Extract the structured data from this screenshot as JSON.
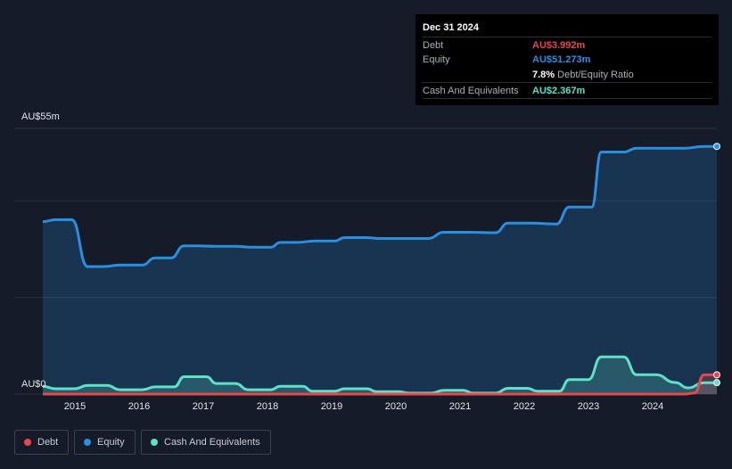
{
  "tooltip": {
    "date": "Dec 31 2024",
    "debt_label": "Debt",
    "debt_value": "AU$3.992m",
    "equity_label": "Equity",
    "equity_value": "AU$51.273m",
    "ratio_value": "7.8%",
    "ratio_label": "Debt/Equity Ratio",
    "cash_label": "Cash And Equivalents",
    "cash_value": "AU$2.367m"
  },
  "legend": {
    "debt": "Debt",
    "equity": "Equity",
    "cash": "Cash And Equivalents"
  },
  "colors": {
    "debt": "#e5484d",
    "equity": "#2b8fe0",
    "cash": "#5fe0c8",
    "background": "#151b28"
  },
  "chart_data": {
    "type": "area",
    "ylabel_top": "AU$55m",
    "ylabel_bottom": "AU$0",
    "ylim": [
      0,
      55
    ],
    "xlim": [
      2014.5,
      2025.0
    ],
    "x_ticks": [
      "2015",
      "2016",
      "2017",
      "2018",
      "2019",
      "2020",
      "2021",
      "2022",
      "2023",
      "2024"
    ],
    "series": [
      {
        "name": "Equity",
        "x": [
          2014.5,
          2014.7,
          2014.95,
          2015.2,
          2015.45,
          2015.7,
          2016.05,
          2016.25,
          2016.5,
          2016.7,
          2016.9,
          2017.2,
          2017.5,
          2017.75,
          2018.05,
          2018.2,
          2018.45,
          2018.75,
          2019.05,
          2019.2,
          2019.55,
          2019.75,
          2020.1,
          2020.5,
          2020.75,
          2021.15,
          2021.55,
          2021.75,
          2022.1,
          2022.5,
          2022.7,
          2023.05,
          2023.2,
          2023.55,
          2023.75,
          2024.1,
          2024.5,
          2024.8,
          2025.0
        ],
        "values": [
          35.7,
          36.1,
          36.1,
          26.4,
          26.4,
          26.7,
          26.7,
          28.2,
          28.2,
          30.7,
          30.7,
          30.6,
          30.6,
          30.4,
          30.4,
          31.4,
          31.4,
          31.7,
          31.7,
          32.4,
          32.4,
          32.2,
          32.2,
          32.2,
          33.5,
          33.5,
          33.4,
          35.4,
          35.4,
          35.2,
          38.7,
          38.7,
          50.1,
          50.1,
          50.9,
          50.9,
          50.9,
          51.273,
          51.273
        ]
      },
      {
        "name": "Cash And Equivalents",
        "x": [
          2014.5,
          2014.7,
          2015.0,
          2015.2,
          2015.5,
          2015.7,
          2016.05,
          2016.25,
          2016.55,
          2016.7,
          2017.05,
          2017.2,
          2017.5,
          2017.7,
          2018.05,
          2018.2,
          2018.55,
          2018.7,
          2019.05,
          2019.2,
          2019.55,
          2019.7,
          2020.05,
          2020.2,
          2020.55,
          2020.75,
          2021.05,
          2021.2,
          2021.55,
          2021.75,
          2022.05,
          2022.2,
          2022.55,
          2022.7,
          2023.0,
          2023.2,
          2023.55,
          2023.75,
          2024.05,
          2024.35,
          2024.55,
          2024.8,
          2025.0
        ],
        "values": [
          1.6,
          1.1,
          1.1,
          1.8,
          1.8,
          0.9,
          0.9,
          1.5,
          1.5,
          3.6,
          3.6,
          2.2,
          2.2,
          0.9,
          0.9,
          1.6,
          1.6,
          0.6,
          0.6,
          1.1,
          1.1,
          0.5,
          0.5,
          0.2,
          0.2,
          0.8,
          0.8,
          0.2,
          0.2,
          1.2,
          1.2,
          0.6,
          0.6,
          3.0,
          3.0,
          7.7,
          7.7,
          4.0,
          4.0,
          2.4,
          1.3,
          2.367,
          2.367
        ]
      },
      {
        "name": "Debt",
        "x": [
          2014.5,
          2024.5,
          2024.65,
          2024.8,
          2025.0
        ],
        "values": [
          0.0,
          0.0,
          0.2,
          3.992,
          3.992
        ]
      }
    ]
  }
}
